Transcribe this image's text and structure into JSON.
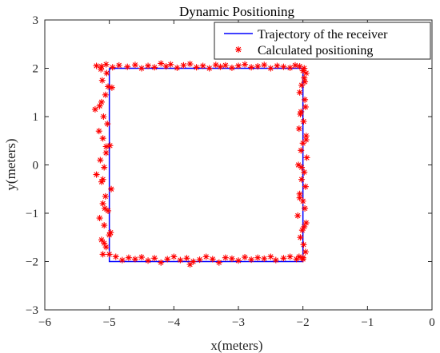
{
  "chart_data": {
    "type": "scatter",
    "title": "Dynamic Positioning",
    "xlabel": "x(meters)",
    "ylabel": "y(meters)",
    "xlim": [
      -6,
      0
    ],
    "ylim": [
      -3,
      3
    ],
    "xticks": [
      -6,
      -5,
      -4,
      -3,
      -2,
      -1,
      0
    ],
    "yticks": [
      -3,
      -2,
      -1,
      0,
      1,
      2,
      3
    ],
    "xtick_labels": [
      "−6",
      "−5",
      "−4",
      "−3",
      "−2",
      "−1",
      "0"
    ],
    "ytick_labels": [
      "−3",
      "−2",
      "−1",
      "0",
      "1",
      "2",
      "3"
    ],
    "grid": false,
    "legend_position": "top-right",
    "series": [
      {
        "name": "Trajectory of the receiver",
        "kind": "line",
        "color": "#0000ff",
        "x": [
          -5,
          -2,
          -2,
          -5,
          -5
        ],
        "y": [
          2,
          2,
          -2,
          -2,
          2
        ]
      },
      {
        "name": "Calculated positioning",
        "kind": "scatter",
        "marker": "asterisk",
        "color": "#ff0000",
        "x": [
          -5.2,
          -5.12,
          -5.05,
          -4.95,
          -4.85,
          -4.72,
          -4.6,
          -4.5,
          -4.4,
          -4.3,
          -4.2,
          -4.12,
          -4.05,
          -3.95,
          -3.85,
          -3.75,
          -3.65,
          -3.55,
          -3.45,
          -3.35,
          -3.28,
          -3.2,
          -3.1,
          -3.0,
          -2.9,
          -2.8,
          -2.7,
          -2.6,
          -2.5,
          -2.4,
          -2.3,
          -2.2,
          -2.12,
          -2.05,
          -1.98,
          -1.95,
          -1.98,
          -2.02,
          -2.05,
          -1.97,
          -1.96,
          -2.04,
          -1.99,
          -2.06,
          -1.95,
          -2.0,
          -2.03,
          -1.94,
          -2.07,
          -1.98,
          -2.02,
          -1.96,
          -2.05,
          -2.0,
          -1.97,
          -2.08,
          -1.95,
          -2.01,
          -2.04,
          -1.99,
          -1.96,
          -2.06,
          -2.0,
          -1.97,
          -2.03,
          -1.95,
          -2.02,
          -2.05,
          -1.98,
          -2.0,
          -2.0,
          -2.1,
          -2.2,
          -2.3,
          -2.42,
          -2.5,
          -2.6,
          -2.7,
          -2.8,
          -2.9,
          -3.0,
          -3.1,
          -3.2,
          -3.3,
          -3.4,
          -3.5,
          -3.6,
          -3.7,
          -3.75,
          -3.8,
          -3.9,
          -4.0,
          -4.1,
          -4.2,
          -4.3,
          -4.4,
          -4.5,
          -4.6,
          -4.7,
          -4.8,
          -4.9,
          -5.0,
          -5.1,
          -5.05,
          -5.12,
          -4.98,
          -5.08,
          -5.15,
          -5.02,
          -5.1,
          -5.06,
          -4.97,
          -5.12,
          -5.2,
          -5.08,
          -5.14,
          -5.05,
          -4.99,
          -5.1,
          -5.16,
          -5.03,
          -5.09,
          -5.22,
          -5.12,
          -5.06,
          -4.96,
          -5.11,
          -5.04,
          -5.13,
          -5.0,
          -5.07,
          -5.1,
          -5.05,
          -5.15,
          -5.02,
          -5.08
        ],
        "y": [
          2.05,
          2.04,
          2.08,
          2.02,
          2.06,
          2.03,
          2.07,
          2.0,
          2.05,
          2.02,
          2.1,
          2.04,
          2.08,
          2.01,
          2.06,
          2.09,
          2.02,
          2.05,
          2.0,
          2.07,
          2.03,
          2.06,
          2.01,
          2.05,
          2.08,
          2.02,
          2.04,
          2.07,
          2.0,
          2.05,
          2.03,
          2.01,
          2.06,
          2.04,
          2.0,
          1.9,
          1.8,
          1.65,
          1.5,
          1.35,
          1.2,
          1.05,
          0.9,
          0.75,
          0.6,
          0.45,
          0.3,
          0.15,
          0.0,
          -0.15,
          -0.3,
          -0.45,
          -0.6,
          -0.75,
          -0.9,
          -1.05,
          -1.2,
          -1.35,
          -1.5,
          -1.65,
          -1.8,
          -1.9,
          1.95,
          1.72,
          1.1,
          0.52,
          -0.05,
          -0.68,
          -1.28,
          -1.95,
          -1.92,
          -1.95,
          -1.9,
          -1.93,
          -1.97,
          -1.9,
          -1.94,
          -1.92,
          -1.96,
          -1.91,
          -1.98,
          -1.94,
          -1.92,
          -2.02,
          -1.95,
          -1.9,
          -1.96,
          -2.0,
          -2.06,
          -1.93,
          -1.97,
          -1.9,
          -1.95,
          -2.02,
          -1.93,
          -1.98,
          -1.91,
          -1.95,
          -1.92,
          -1.97,
          -1.9,
          -1.85,
          -1.85,
          -1.7,
          -1.55,
          -1.4,
          -1.25,
          -1.1,
          -0.95,
          -0.8,
          -0.65,
          -0.5,
          -0.35,
          -0.2,
          -0.05,
          0.1,
          0.25,
          0.4,
          0.55,
          0.7,
          0.85,
          1.0,
          1.15,
          1.3,
          1.45,
          1.6,
          1.75,
          1.9,
          1.98,
          -1.45,
          -0.9,
          -0.3,
          0.38,
          1.22,
          1.62,
          -1.62
        ]
      }
    ]
  }
}
